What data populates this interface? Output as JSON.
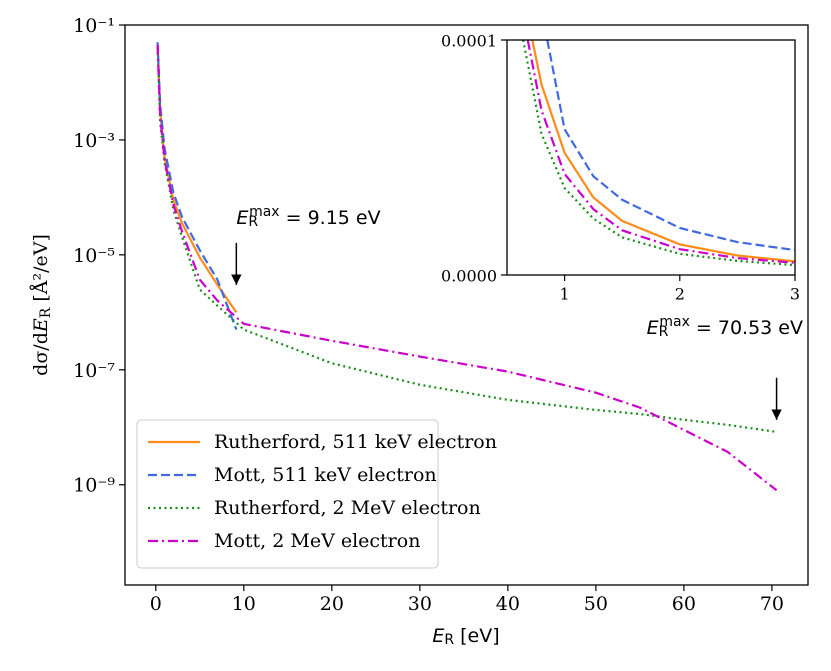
{
  "chart_data": [
    {
      "type": "line",
      "xlabel": {
        "symbol": "E",
        "subscript": "R",
        "unit": " [eV]"
      },
      "ylabel": {
        "prefix": "dσ/d",
        "symbol": "E",
        "subscript": "R",
        "unit": " [Å²/eV]"
      },
      "xlim": [
        -3.5,
        74.1
      ],
      "xticks": [
        0,
        10,
        20,
        30,
        40,
        50,
        60,
        70
      ],
      "ylim": [
        1.8e-11,
        0.1
      ],
      "log_y": true,
      "yticks": [
        {
          "value": 0.1,
          "label": "10⁻¹"
        },
        {
          "value": 0.001,
          "label": "10⁻³"
        },
        {
          "value": 1e-05,
          "label": "10⁻⁵"
        },
        {
          "value": 1e-07,
          "label": "10⁻⁷"
        },
        {
          "value": 1e-09,
          "label": "10⁻⁹"
        }
      ],
      "legend": "lower left",
      "series": [
        {
          "name": "Rutherford, 511 keV electron",
          "color": "#ff8c1a",
          "dash": "solid",
          "x": [
            0.2,
            0.5,
            1,
            2,
            3,
            5,
            7,
            9.15
          ],
          "values": [
            0.05,
            0.003,
            0.0005,
            9e-05,
            3.5e-05,
            9e-06,
            3e-06,
            1e-06
          ]
        },
        {
          "name": "Mott, 511 keV electron",
          "color": "#4169e1",
          "dash": "dashed",
          "x": [
            0.2,
            0.5,
            1,
            2,
            3,
            5,
            7,
            9.15
          ],
          "values": [
            0.05,
            0.004,
            0.0007,
            0.00012,
            4.5e-05,
            1.2e-05,
            3.7e-06,
            5e-07
          ]
        },
        {
          "name": "Rutherford, 2 MeV electron",
          "color": "#1a8c1a",
          "dash": "dotted",
          "x": [
            0.2,
            0.5,
            1,
            2,
            3,
            5,
            7,
            10,
            20,
            30,
            40,
            50,
            55,
            60,
            65,
            70.53
          ],
          "values": [
            0.04,
            0.002,
            0.0004,
            6e-05,
            2e-05,
            2.5e-06,
            1.3e-06,
            5e-07,
            1.3e-07,
            5.5e-08,
            3e-08,
            2e-08,
            1.7e-08,
            1.35e-08,
            1.1e-08,
            8.3e-09
          ]
        },
        {
          "name": "Mott, 2 MeV electron",
          "color": "#cc00cc",
          "dash": "dashdot",
          "x": [
            0.2,
            0.5,
            1,
            2,
            3,
            5,
            7,
            10,
            20,
            30,
            40,
            50,
            55,
            60,
            65,
            70.53
          ],
          "values": [
            0.045,
            0.0025,
            0.00045,
            7.5e-05,
            2.5e-05,
            3.7e-06,
            1.6e-06,
            6.3e-07,
            3.2e-07,
            1.7e-07,
            9.3e-08,
            4e-08,
            2.2e-08,
            9e-09,
            3.7e-09,
            8e-10
          ]
        }
      ],
      "annotations": [
        {
          "symbol": "E",
          "subscript": "R",
          "superscript": "max",
          "text": " = 9.15 eV",
          "x": 9.15,
          "y": 3e-06
        },
        {
          "symbol": "E",
          "subscript": "R",
          "superscript": "max",
          "text": " = 70.53 eV",
          "x": 70.53,
          "y": 1.35e-08
        }
      ]
    },
    {
      "type": "line",
      "xlim": [
        0.5,
        3
      ],
      "xticks": [
        1,
        2,
        3
      ],
      "ylim": [
        0,
        0.0001
      ],
      "yticks": [
        {
          "value": 0,
          "label": "0.0000"
        },
        {
          "value": 0.0001,
          "label": "0.0001"
        }
      ],
      "series": [
        {
          "color": "#ff8c1a",
          "dash": "solid",
          "x": [
            0.72,
            0.8,
            1,
            1.25,
            1.5,
            2,
            2.5,
            3
          ],
          "values": [
            0.0001,
            8.1e-05,
            5.2e-05,
            3.3e-05,
            2.3e-05,
            1.3e-05,
            8.3e-06,
            5.8e-06
          ]
        },
        {
          "color": "#4169e1",
          "dash": "dashed",
          "x": [
            0.85,
            1,
            1.25,
            1.5,
            2,
            2.5,
            3
          ],
          "values": [
            0.0001,
            6.2e-05,
            4.2e-05,
            3.2e-05,
            2e-05,
            1.4e-05,
            1.06e-05
          ]
        },
        {
          "color": "#1a8c1a",
          "dash": "dotted",
          "x": [
            0.64,
            0.8,
            1,
            1.25,
            1.5,
            2,
            2.5,
            3
          ],
          "values": [
            0.0001,
            6e-05,
            3.7e-05,
            2.4e-05,
            1.6e-05,
            9e-06,
            6e-06,
            4.2e-06
          ]
        },
        {
          "color": "#cc00cc",
          "dash": "dashdot",
          "x": [
            0.68,
            0.8,
            1,
            1.25,
            1.5,
            2,
            2.5,
            3
          ],
          "values": [
            0.0001,
            7e-05,
            4.3e-05,
            2.8e-05,
            1.9e-05,
            1.1e-05,
            7.2e-06,
            5.2e-06
          ]
        }
      ]
    }
  ]
}
